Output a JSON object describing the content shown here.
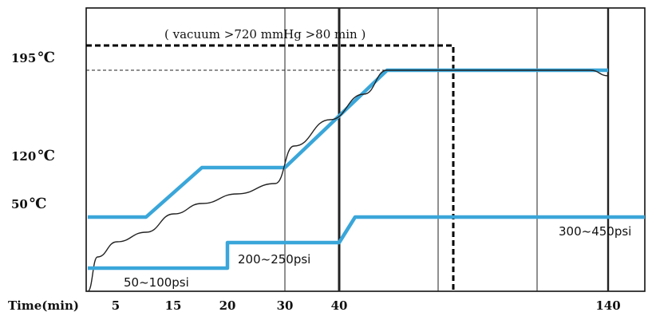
{
  "chart_data": {
    "type": "line",
    "annotation": "( vacuum   >720 mmHg   >80 min  )",
    "xlabel": "Time(min)",
    "x_ticks": [
      "5",
      "15",
      "20",
      "30",
      "40",
      "140"
    ],
    "y_ticks": [
      "195",
      "120",
      "50"
    ],
    "y_unit": "℃",
    "colors": {
      "profile": "#3aa6d9",
      "measured": "#222222",
      "frame": "#111111"
    },
    "series": [
      {
        "role": "temperature-setpoint",
        "points": [
          [
            0,
            50
          ],
          [
            6,
            50
          ],
          [
            12,
            120
          ],
          [
            20,
            120
          ],
          [
            33,
            195
          ],
          [
            55,
            195
          ]
        ]
      },
      {
        "role": "temperature-measured",
        "points": [
          [
            0,
            0
          ],
          [
            1,
            15
          ],
          [
            3,
            28
          ],
          [
            6,
            42
          ],
          [
            9,
            60
          ],
          [
            12,
            82
          ],
          [
            15,
            92
          ],
          [
            19,
            102
          ],
          [
            21,
            140
          ],
          [
            25,
            158
          ],
          [
            29,
            180
          ],
          [
            33,
            194
          ],
          [
            50,
            194
          ],
          [
            52,
            185
          ]
        ]
      },
      {
        "role": "pressure",
        "labels": [
          "50~100psi",
          "200~250psi",
          "300~450psi"
        ],
        "points": [
          [
            0,
            0
          ],
          [
            14,
            0
          ],
          [
            14,
            25
          ],
          [
            26,
            25
          ],
          [
            27.5,
            50
          ],
          [
            60,
            50
          ]
        ]
      }
    ],
    "vacuum_box": {
      "from_x": 0,
      "to_x": 35
    }
  }
}
